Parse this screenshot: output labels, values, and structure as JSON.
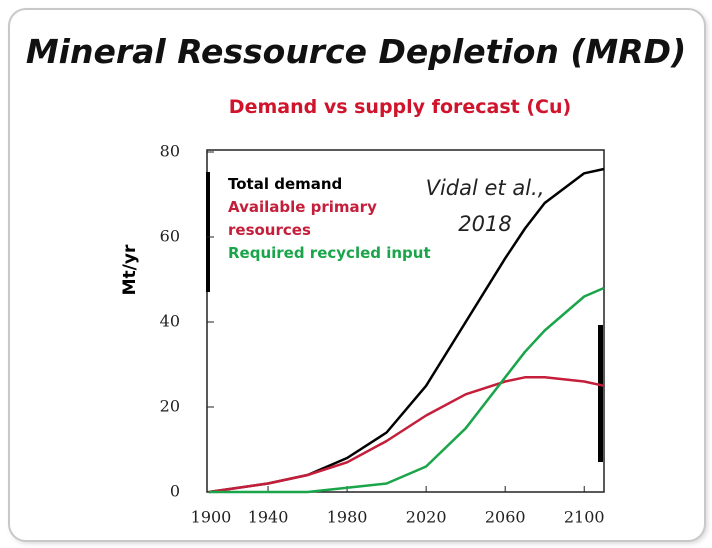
{
  "chart_data": {
    "type": "line",
    "title": "Mineral Ressource Depletion (MRD)",
    "subtitle": "Demand vs supply forecast (Cu)",
    "ylabel": "Mt/yr",
    "annotation": "Vidal et al., 2018",
    "x": [
      1910,
      1940,
      1960,
      1980,
      2000,
      2020,
      2040,
      2060,
      2070,
      2080,
      2100,
      2110
    ],
    "series": [
      {
        "name": "Total demand",
        "color": "#000000",
        "values": [
          0,
          2,
          4,
          8,
          14,
          25,
          40,
          55,
          62,
          68,
          75,
          76
        ]
      },
      {
        "name": "Available primary resources",
        "color": "#c41e3a",
        "values": [
          0,
          2,
          4,
          7,
          12,
          18,
          23,
          26,
          27,
          27,
          26,
          25
        ]
      },
      {
        "name": "Required recycled input",
        "color": "#1aa54a",
        "values": [
          0,
          0,
          0,
          1,
          2,
          6,
          15,
          27,
          33,
          38,
          46,
          48
        ]
      }
    ],
    "xlim": [
      1900,
      2110
    ],
    "xticks": [
      1900,
      1940,
      1980,
      2020,
      2060,
      2100
    ],
    "ylim": [
      0,
      80
    ],
    "yticks": [
      0,
      20,
      40,
      60,
      80
    ]
  }
}
